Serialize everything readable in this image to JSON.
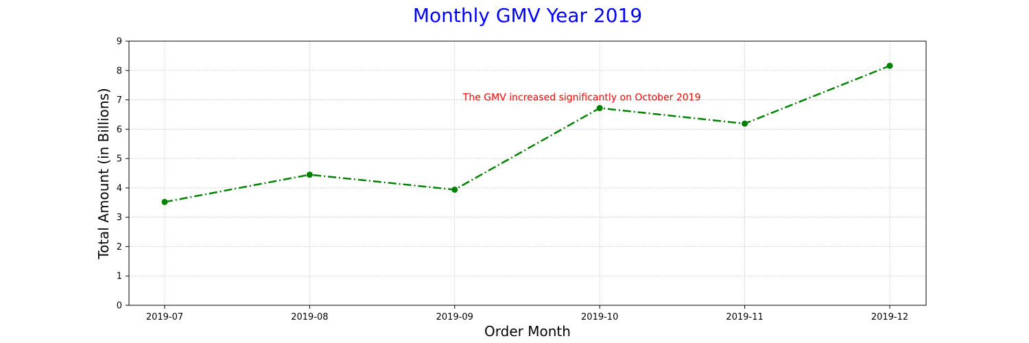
{
  "chart_data": {
    "type": "line",
    "title": "Monthly GMV Year 2019",
    "xlabel": "Order Month",
    "ylabel": "Total Amount (in Billions)",
    "categories": [
      "2019-07",
      "2019-08",
      "2019-09",
      "2019-10",
      "2019-11",
      "2019-12"
    ],
    "series": [
      {
        "values": [
          3.52,
          4.45,
          3.94,
          6.72,
          6.19,
          8.16
        ],
        "color": "#008000",
        "line_style": "dash-dot",
        "marker": "circle"
      }
    ],
    "ylim": [
      0,
      9
    ],
    "yticks": [
      "0",
      "1",
      "2",
      "3",
      "4",
      "5",
      "6",
      "7",
      "8",
      "9"
    ],
    "grid": true,
    "annotation": {
      "text": "The GMV increased significantly on October 2019",
      "x": "2019-09",
      "y": 7.1,
      "color": "#ff0000"
    },
    "title_color": "#0000ff"
  }
}
